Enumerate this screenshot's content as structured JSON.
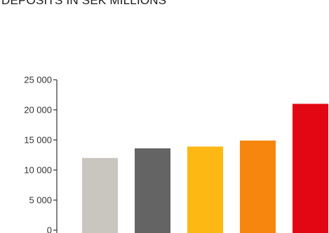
{
  "chart_data": {
    "type": "bar",
    "title": "DEPOSITS IN SEK MILLIONS",
    "xlabel": "",
    "ylabel": "",
    "ylim": [
      0,
      25000
    ],
    "yticks": [
      0,
      5000,
      10000,
      15000,
      20000,
      25000
    ],
    "ytick_labels": [
      "0",
      "5 000",
      "10 000",
      "15 000",
      "20 000",
      "25 000"
    ],
    "categories": [
      "",
      "",
      "",
      "",
      ""
    ],
    "values": [
      12000,
      13600,
      13900,
      14900,
      21000
    ],
    "colors": [
      "#c9c6bf",
      "#646464",
      "#fdb813",
      "#f7860f",
      "#e30613"
    ],
    "axis_color": "#333333",
    "grid": false,
    "legend": "none"
  }
}
